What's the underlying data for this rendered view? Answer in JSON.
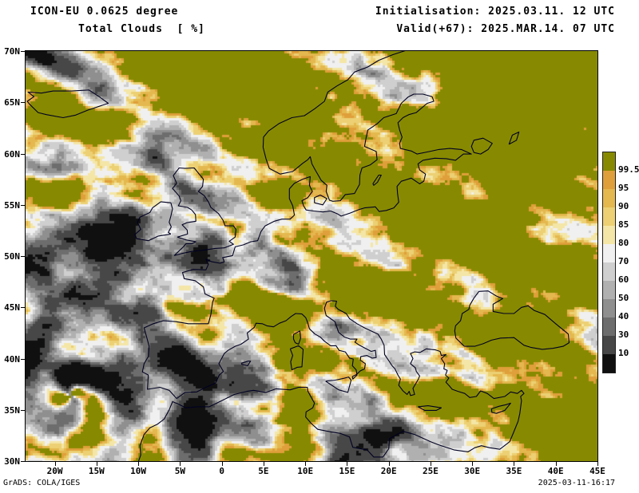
{
  "header": {
    "model_title": "ICON-EU 0.0625 degree",
    "variable_title": "Total Clouds  [ %]",
    "init_line": "Initialisation: 2025.03.11. 12 UTC",
    "valid_line": "Valid(+67): 2025.MAR.14. 07 UTC"
  },
  "map": {
    "y_tick_labels": [
      "70N",
      "65N",
      "60N",
      "55N",
      "50N",
      "45N",
      "40N",
      "35N",
      "30N"
    ],
    "y_tick_lats": [
      70,
      65,
      60,
      55,
      50,
      45,
      40,
      35,
      30
    ],
    "x_tick_labels": [
      "20W",
      "15W",
      "10W",
      "5W",
      "0",
      "5E",
      "10E",
      "15E",
      "20E",
      "25E",
      "30E",
      "35E",
      "40E",
      "45E"
    ],
    "x_tick_lons": [
      -20,
      -15,
      -10,
      -5,
      0,
      5,
      10,
      15,
      20,
      25,
      30,
      35,
      40,
      45
    ],
    "lon_range": [
      -23.5,
      45
    ],
    "lat_range": [
      30,
      70
    ]
  },
  "colorbar": {
    "tick_labels": [
      "99.5",
      "95",
      "90",
      "85",
      "80",
      "70",
      "60",
      "50",
      "40",
      "30",
      "10"
    ],
    "levels": [
      10,
      30,
      40,
      50,
      60,
      70,
      80,
      85,
      90,
      95,
      99.5
    ],
    "segment_colors_top_to_bottom": [
      "#878a00",
      "#df9f3a",
      "#e4b84e",
      "#ecd073",
      "#f4e6a6",
      "#f0f0f0",
      "#cfcfcf",
      "#b0b0b0",
      "#8f8f8f",
      "#6d6d6d",
      "#474747",
      "#101010"
    ]
  },
  "colors": {
    "coastline": "#000022",
    "frame": "#000000",
    "text": "#000000",
    "background": "#ffffff"
  },
  "footer": {
    "grads_credit": "GrADS: COLA/IGES",
    "timestamp": "2025-03-11-16:17"
  }
}
